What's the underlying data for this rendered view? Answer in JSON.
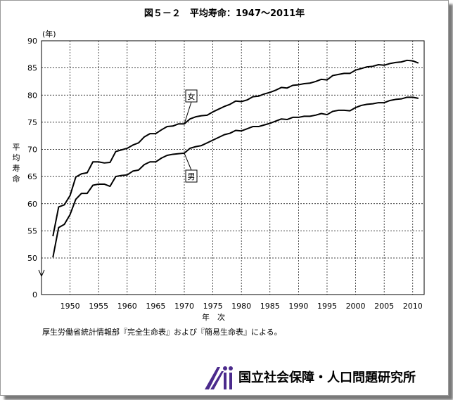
{
  "chart_data": {
    "type": "line",
    "title": "図５－２　平均寿命：1947～2011年",
    "ylabel": "平均寿命",
    "yunit": "(年)",
    "xlabel": "年　次",
    "xlim": [
      1945,
      2012
    ],
    "ylim": [
      45,
      90
    ],
    "y_axis_break": true,
    "yticks": [
      "0",
      "50",
      "55",
      "60",
      "65",
      "70",
      "75",
      "80",
      "85",
      "90"
    ],
    "xticks": [
      "1950",
      "1955",
      "1960",
      "1965",
      "1970",
      "1975",
      "1980",
      "1985",
      "1990",
      "1995",
      "2000",
      "2005",
      "2010"
    ],
    "grid": true,
    "x": [
      1947,
      1948,
      1949,
      1950,
      1951,
      1952,
      1953,
      1954,
      1955,
      1956,
      1957,
      1958,
      1959,
      1960,
      1961,
      1962,
      1963,
      1964,
      1965,
      1966,
      1967,
      1968,
      1969,
      1970,
      1971,
      1972,
      1973,
      1974,
      1975,
      1976,
      1977,
      1978,
      1979,
      1980,
      1981,
      1982,
      1983,
      1984,
      1985,
      1986,
      1987,
      1988,
      1989,
      1990,
      1991,
      1992,
      1993,
      1994,
      1995,
      1996,
      1997,
      1998,
      1999,
      2000,
      2001,
      2002,
      2003,
      2004,
      2005,
      2006,
      2007,
      2008,
      2009,
      2010,
      2011
    ],
    "series": [
      {
        "name": "女",
        "color": "#000000",
        "values": [
          54.0,
          59.4,
          59.8,
          61.5,
          64.9,
          65.5,
          65.7,
          67.7,
          67.7,
          67.5,
          67.6,
          69.6,
          69.9,
          70.2,
          70.8,
          71.2,
          72.3,
          72.9,
          72.9,
          73.6,
          74.2,
          74.3,
          74.7,
          74.7,
          75.6,
          76.0,
          76.2,
          76.3,
          76.9,
          77.4,
          77.9,
          78.3,
          78.9,
          78.8,
          79.1,
          79.7,
          79.8,
          80.2,
          80.5,
          80.9,
          81.4,
          81.3,
          81.8,
          81.9,
          82.1,
          82.2,
          82.5,
          82.9,
          82.8,
          83.6,
          83.8,
          84.0,
          83.99,
          84.6,
          84.9,
          85.2,
          85.3,
          85.6,
          85.5,
          85.8,
          86.0,
          86.1,
          86.4,
          86.3,
          85.9
        ]
      },
      {
        "name": "男",
        "color": "#000000",
        "values": [
          50.1,
          55.6,
          56.2,
          58.0,
          60.8,
          61.9,
          61.9,
          63.4,
          63.6,
          63.6,
          63.2,
          65.0,
          65.2,
          65.3,
          66.0,
          66.2,
          67.2,
          67.7,
          67.7,
          68.4,
          68.9,
          69.1,
          69.2,
          69.3,
          70.2,
          70.5,
          70.7,
          71.2,
          71.7,
          72.2,
          72.7,
          72.97,
          73.5,
          73.4,
          73.8,
          74.2,
          74.2,
          74.5,
          74.8,
          75.2,
          75.6,
          75.5,
          75.9,
          75.9,
          76.1,
          76.1,
          76.3,
          76.6,
          76.4,
          77.0,
          77.2,
          77.2,
          77.1,
          77.7,
          78.1,
          78.3,
          78.4,
          78.6,
          78.6,
          79.0,
          79.2,
          79.3,
          79.6,
          79.6,
          79.4
        ]
      }
    ]
  },
  "source_note": "厚生労働省統計情報部『完全生命表』および『簡易生命表』による。",
  "org": {
    "name": "国立社会保障・人口問題研究所",
    "logo_text": "ipss",
    "logo_color": "#4b2a8c"
  }
}
